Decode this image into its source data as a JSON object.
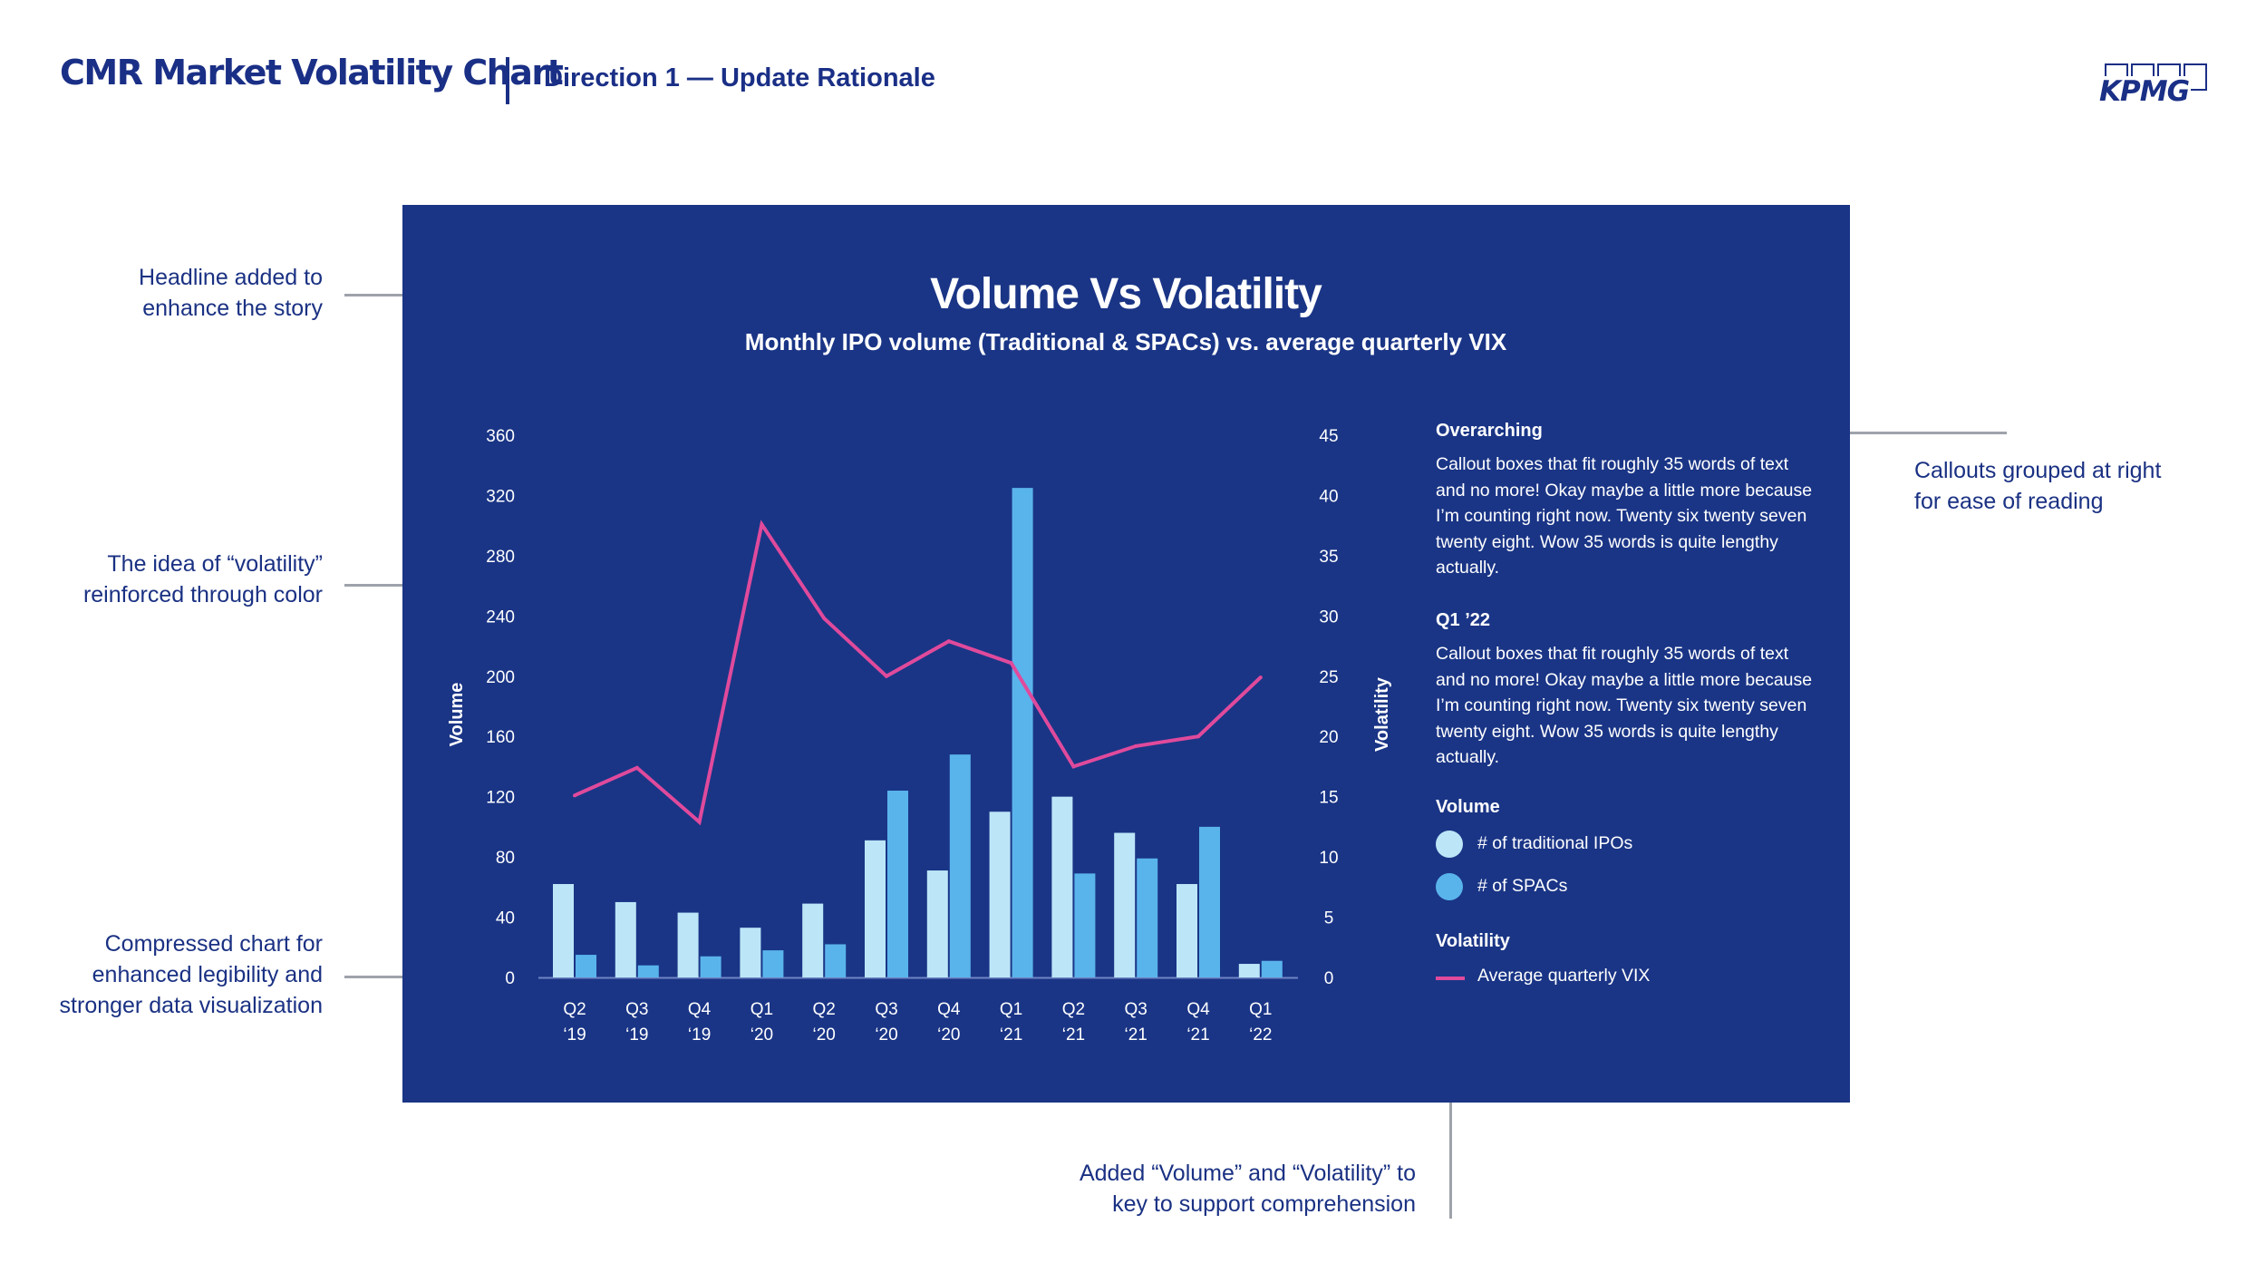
{
  "header": {
    "title": "CMR Market Volatility Chart",
    "subtitle": "Direction 1 — Update Rationale",
    "logo_text": "KPMG"
  },
  "annotations": {
    "headline": [
      "Headline added to",
      "enhance the story"
    ],
    "volatility_color": [
      "The idea of “volatility”",
      "reinforced through color"
    ],
    "compressed": [
      "Compressed chart for",
      "enhanced legibility and",
      "stronger data visualization"
    ],
    "callouts": [
      "Callouts grouped at right",
      "for ease of reading"
    ],
    "key": [
      "Added “Volume” and “Volatility” to",
      "key to support comprehension"
    ]
  },
  "callouts": [
    {
      "title": "Overarching",
      "body": "Callout boxes that fit roughly 35 words of text and no more! Okay maybe a little more because I’m counting right now. Twenty six twenty seven twenty eight. Wow 35 words is quite lengthy actually."
    },
    {
      "title": "Q1 ’22",
      "body": "Callout boxes that fit roughly 35 words of text and no more! Okay maybe a little more because I’m counting right now. Twenty six twenty seven twenty eight. Wow 35 words is quite lengthy actually."
    }
  ],
  "legend": {
    "volume_title": "Volume",
    "volatility_title": "Volatility"
  },
  "colors": {
    "panel": "#1a3586",
    "traditional": "#bce6f8",
    "spacs": "#5ab4ec",
    "vix": "#e04a9c",
    "text_dark": "#1a2f86"
  },
  "chart_data": {
    "type": "bar",
    "title": "Volume Vs Volatility",
    "subtitle": "Monthly IPO volume (Traditional & SPACs) vs. average quarterly VIX",
    "categories": [
      [
        "Q2",
        "‘19"
      ],
      [
        "Q3",
        "‘19"
      ],
      [
        "Q4",
        "‘19"
      ],
      [
        "Q1",
        "‘20"
      ],
      [
        "Q2",
        "‘20"
      ],
      [
        "Q3",
        "‘20"
      ],
      [
        "Q4",
        "‘20"
      ],
      [
        "Q1",
        "‘21"
      ],
      [
        "Q2",
        "‘21"
      ],
      [
        "Q3",
        "‘21"
      ],
      [
        "Q4",
        "‘21"
      ],
      [
        "Q1",
        "‘22"
      ]
    ],
    "series": [
      {
        "name": "# of traditional IPOs",
        "axis": "left",
        "kind": "bar",
        "values": [
          62,
          50,
          43,
          33,
          49,
          91,
          71,
          110,
          120,
          96,
          62,
          9
        ]
      },
      {
        "name": "# of SPACs",
        "axis": "left",
        "kind": "bar",
        "values": [
          15,
          8,
          14,
          18,
          22,
          124,
          148,
          325,
          69,
          79,
          100,
          11
        ]
      },
      {
        "name": "Average quarterly VIX",
        "axis": "right",
        "kind": "line",
        "values": [
          15.1,
          17.4,
          12.9,
          37.6,
          29.8,
          25,
          27.9,
          26.1,
          17.5,
          19.2,
          20,
          24.9
        ]
      }
    ],
    "ylabel": "Volume",
    "y2label": "Volatility",
    "ylim": [
      0,
      360
    ],
    "y2lim": [
      0,
      45
    ],
    "yticks": [
      "0",
      "40",
      "80",
      "120",
      "160",
      "200",
      "240",
      "280",
      "320",
      "360"
    ],
    "y2ticks": [
      "0",
      "5",
      "10",
      "15",
      "20",
      "25",
      "30",
      "35",
      "40",
      "45"
    ],
    "grid": false,
    "legend_position": "right"
  }
}
